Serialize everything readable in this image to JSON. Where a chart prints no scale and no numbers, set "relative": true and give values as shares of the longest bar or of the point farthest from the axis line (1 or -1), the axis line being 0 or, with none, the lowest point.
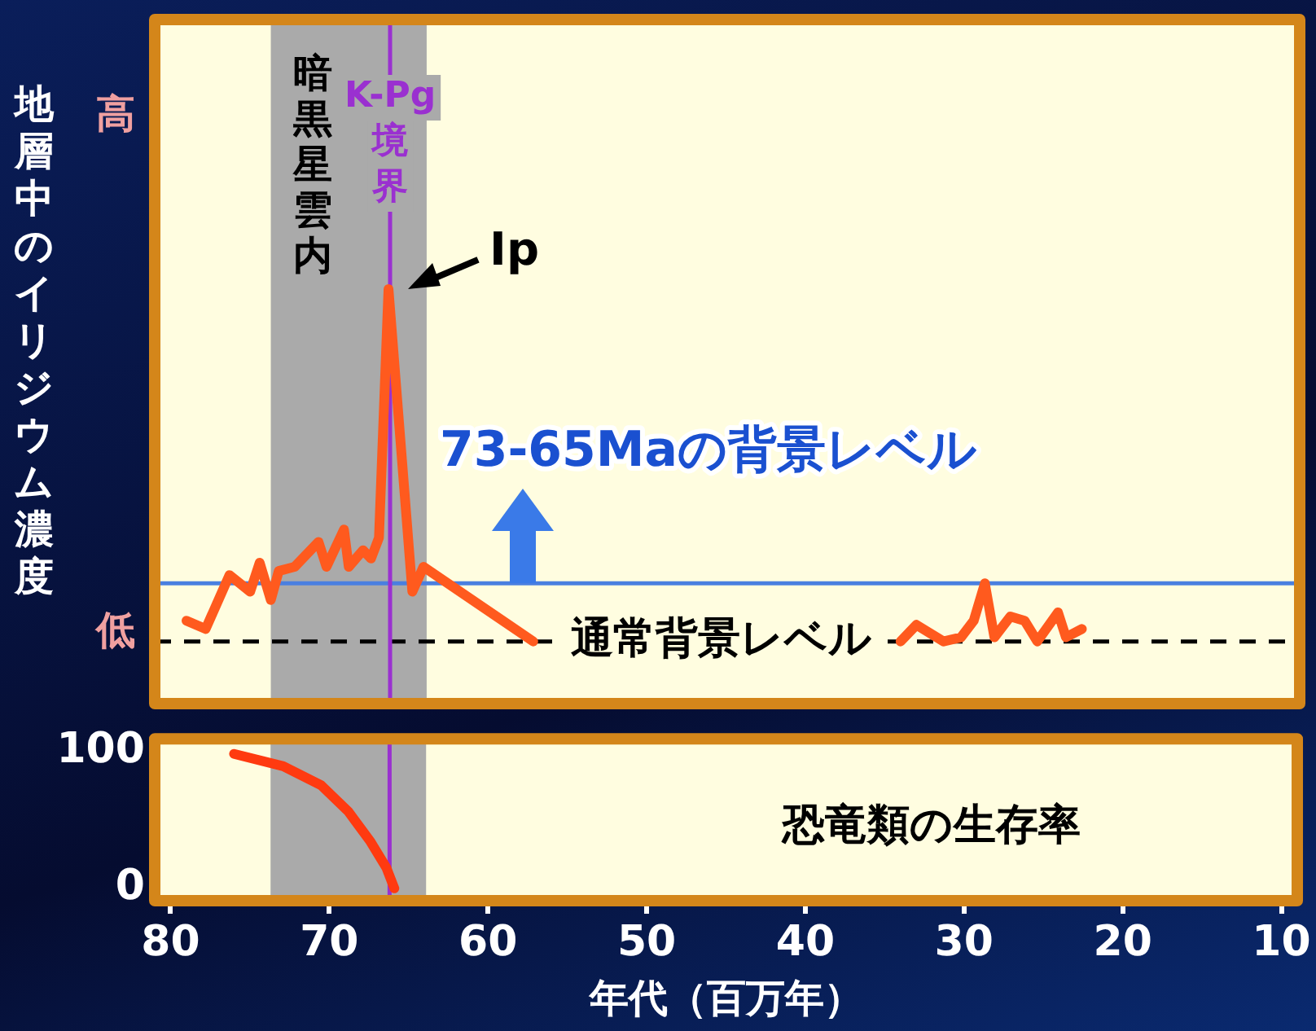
{
  "chart_data": [
    {
      "type": "line",
      "ylabel": "地層中のイリジウム濃度",
      "relative": true,
      "xlim": [
        81,
        9
      ],
      "tick_labels": false,
      "grid": false,
      "legend": false,
      "marker": "none",
      "line_style": "solid",
      "series": [
        {
          "color": "#ff5a1e",
          "x": [
            79.0,
            77.8,
            76.3,
            75.0,
            74.4,
            73.7,
            73.2,
            72.2,
            70.7,
            70.2,
            69.1,
            68.8,
            67.9,
            67.4,
            66.9,
            66.3,
            64.8,
            64.1,
            57.2
          ],
          "values": [
            0.2,
            0.18,
            0.31,
            0.27,
            0.34,
            0.25,
            0.32,
            0.33,
            0.39,
            0.33,
            0.42,
            0.33,
            0.37,
            0.35,
            0.4,
            1,
            0.27,
            0.33,
            0.15
          ]
        },
        {
          "color": "#ff5a1e",
          "x": [
            34.1,
            33.1,
            31.4,
            30.3,
            29.5,
            28.8,
            28.2,
            27.2,
            26.3,
            25.5,
            24.2,
            23.7,
            22.7
          ],
          "values": [
            0.15,
            0.19,
            0.15,
            0.16,
            0.2,
            0.29,
            0.16,
            0.21,
            0.2,
            0.15,
            0.22,
            0.16,
            0.18
          ]
        }
      ],
      "ref_lines": [
        {
          "axis": "y",
          "value": 0.29,
          "label": "73-65Maの背景レベル",
          "color": "#4a7fe0",
          "line_style": "solid"
        },
        {
          "axis": "y",
          "value": 0.15,
          "label": "通常背景レベル",
          "color": "#000000",
          "line_style": "dashed"
        },
        {
          "axis": "x",
          "value": 66.2,
          "label": "K-Pg境界",
          "color": "#9a30d0",
          "line_style": "solid"
        }
      ],
      "bands": [
        {
          "axis": "x",
          "from": 73.7,
          "to": 63.9,
          "label": "暗黒星雲内",
          "color": "#aaaaaa"
        }
      ],
      "annotations": [
        "高",
        "低",
        {
          "text": "Ip",
          "x": 66.3,
          "y": 1
        }
      ]
    },
    {
      "type": "line",
      "xlabel": "年代（百万年）",
      "xlim": [
        81,
        9
      ],
      "xticks": [
        80,
        70,
        60,
        50,
        40,
        30,
        20,
        10
      ],
      "ylim": [
        -9,
        109
      ],
      "yticks": [
        0,
        100
      ],
      "grid": false,
      "legend": false,
      "marker": "none",
      "line_style": "solid",
      "series": [
        {
          "color": "#ff3a10",
          "x": [
            76.0,
            72.9,
            70.5,
            68.8,
            67.4,
            66.4,
            65.9
          ],
          "values": [
            98,
            89,
            75,
            56,
            34,
            15,
            0
          ]
        }
      ],
      "ref_lines": [
        {
          "axis": "x",
          "value": 66.2,
          "color": "#9a30d0",
          "line_style": "solid"
        }
      ],
      "bands": [
        {
          "axis": "x",
          "from": 73.7,
          "to": 63.9,
          "color": "#aaaaaa"
        }
      ],
      "annotations": [
        "恐竜類の生存率"
      ]
    }
  ]
}
